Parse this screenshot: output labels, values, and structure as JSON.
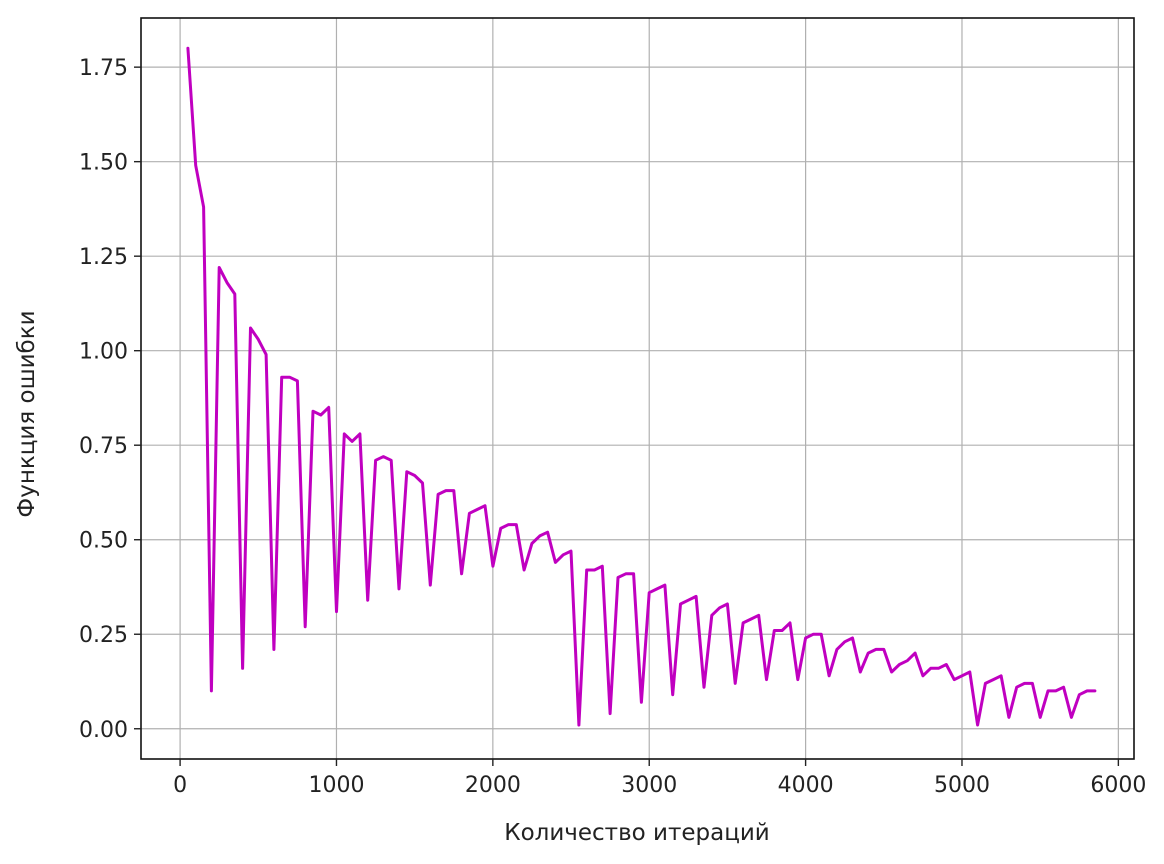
{
  "chart_data": {
    "type": "line",
    "title": "",
    "xlabel": "Количество итераций",
    "ylabel": "Функция ошибки",
    "xlim": [
      -250,
      6100
    ],
    "ylim": [
      -0.08,
      1.88
    ],
    "x_ticks": [
      0,
      1000,
      2000,
      3000,
      4000,
      5000,
      6000
    ],
    "x_tick_labels": [
      "0",
      "1000",
      "2000",
      "3000",
      "4000",
      "5000",
      "6000"
    ],
    "y_ticks": [
      0.0,
      0.25,
      0.5,
      0.75,
      1.0,
      1.25,
      1.5,
      1.75
    ],
    "y_tick_labels": [
      "0.00",
      "0.25",
      "0.50",
      "0.75",
      "1.00",
      "1.25",
      "1.50",
      "1.75"
    ],
    "grid": true,
    "line_color": "#c000c0",
    "series": [
      {
        "x": [
          50,
          100,
          150,
          200,
          250,
          300,
          350,
          400,
          450,
          500,
          550,
          600,
          650,
          700,
          750,
          800,
          850,
          900,
          950,
          1000,
          1050,
          1100,
          1150,
          1200,
          1250,
          1300,
          1350,
          1400,
          1450,
          1500,
          1550,
          1600,
          1650,
          1700,
          1750,
          1800,
          1850,
          1900,
          1950,
          2000,
          2050,
          2100,
          2150,
          2200,
          2250,
          2300,
          2350,
          2400,
          2450,
          2500,
          2550,
          2600,
          2650,
          2700,
          2750,
          2800,
          2850,
          2900,
          2950,
          3000,
          3050,
          3100,
          3150,
          3200,
          3250,
          3300,
          3350,
          3400,
          3450,
          3500,
          3550,
          3600,
          3650,
          3700,
          3750,
          3800,
          3850,
          3900,
          3950,
          4000,
          4050,
          4100,
          4150,
          4200,
          4250,
          4300,
          4350,
          4400,
          4450,
          4500,
          4550,
          4600,
          4650,
          4700,
          4750,
          4800,
          4850,
          4900,
          4950,
          5000,
          5050,
          5100,
          5150,
          5200,
          5250,
          5300,
          5350,
          5400,
          5450,
          5500,
          5550,
          5600,
          5650,
          5700,
          5750,
          5800,
          5850
        ],
        "y": [
          1.8,
          1.49,
          1.38,
          0.1,
          1.22,
          1.18,
          1.15,
          0.16,
          1.06,
          1.03,
          0.99,
          0.21,
          0.93,
          0.93,
          0.92,
          0.27,
          0.84,
          0.83,
          0.85,
          0.31,
          0.78,
          0.76,
          0.78,
          0.34,
          0.71,
          0.72,
          0.71,
          0.37,
          0.68,
          0.67,
          0.65,
          0.38,
          0.62,
          0.63,
          0.63,
          0.41,
          0.57,
          0.58,
          0.59,
          0.43,
          0.53,
          0.54,
          0.54,
          0.42,
          0.49,
          0.51,
          0.52,
          0.44,
          0.46,
          0.47,
          0.01,
          0.42,
          0.42,
          0.43,
          0.04,
          0.4,
          0.41,
          0.41,
          0.07,
          0.36,
          0.37,
          0.38,
          0.09,
          0.33,
          0.34,
          0.35,
          0.11,
          0.3,
          0.32,
          0.33,
          0.12,
          0.28,
          0.29,
          0.3,
          0.13,
          0.26,
          0.26,
          0.28,
          0.13,
          0.24,
          0.25,
          0.25,
          0.14,
          0.21,
          0.23,
          0.24,
          0.15,
          0.2,
          0.21,
          0.21,
          0.15,
          0.17,
          0.18,
          0.2,
          0.14,
          0.16,
          0.16,
          0.17,
          0.13,
          0.14,
          0.15,
          0.01,
          0.12,
          0.13,
          0.14,
          0.03,
          0.11,
          0.12,
          0.12,
          0.03,
          0.1,
          0.1,
          0.11,
          0.03,
          0.09,
          0.1,
          0.1
        ]
      }
    ]
  }
}
